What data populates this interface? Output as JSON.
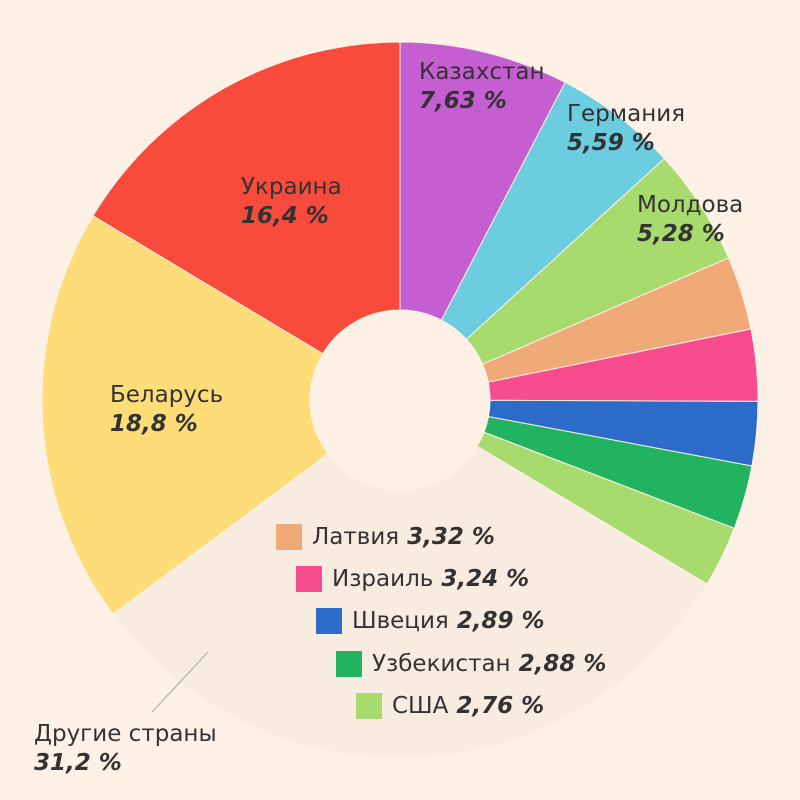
{
  "chart_data": {
    "type": "pie",
    "donut": true,
    "start_angle_deg": 0,
    "direction": "clockwise",
    "slices": [
      {
        "label": "Казахстан",
        "value": 7.63,
        "display": "7,63 %",
        "color": "#c55ed0"
      },
      {
        "label": "Германия",
        "value": 5.59,
        "display": "5,59 %",
        "color": "#6ccde1"
      },
      {
        "label": "Молдова",
        "value": 5.28,
        "display": "5,28 %",
        "color": "#a8db6d"
      },
      {
        "label": "Латвия",
        "value": 3.32,
        "display": "3,32 %",
        "color": "#f0aa78"
      },
      {
        "label": "Израиль",
        "value": 3.24,
        "display": "3,24 %",
        "color": "#f74c8e"
      },
      {
        "label": "Швеция",
        "value": 2.89,
        "display": "2,89 %",
        "color": "#2c6bc7"
      },
      {
        "label": "Узбекистан",
        "value": 2.88,
        "display": "2,88 %",
        "color": "#22b360"
      },
      {
        "label": "США",
        "value": 2.76,
        "display": "2,76 %",
        "color": "#a8db6d"
      },
      {
        "label": "Другие страны",
        "value": 31.2,
        "display": "31,2 %",
        "color": "#f8ebe0"
      },
      {
        "label": "Беларусь",
        "value": 18.8,
        "display": "18,8 %",
        "color": "#fedc78"
      },
      {
        "label": "Украина",
        "value": 16.4,
        "display": "16,4 %",
        "color": "#f94b3c"
      }
    ]
  }
}
